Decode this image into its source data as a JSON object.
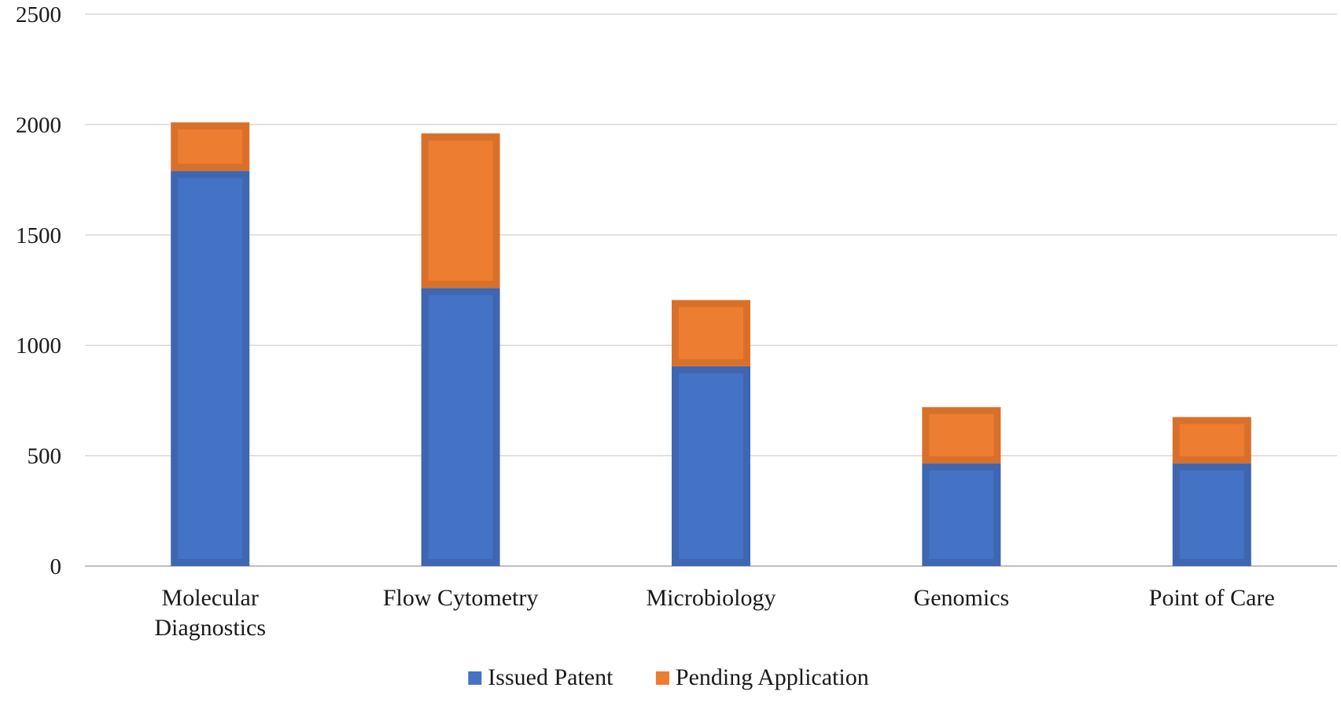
{
  "chart_data": {
    "type": "bar",
    "stacked": true,
    "title": "",
    "xlabel": "",
    "ylabel": "",
    "categories": [
      [
        "Molecular",
        "Diagnostics"
      ],
      [
        "Flow Cytometry"
      ],
      [
        "Microbiology"
      ],
      [
        "Genomics"
      ],
      [
        "Point of Care"
      ]
    ],
    "series": [
      {
        "name": "Issued Patent",
        "color": "#4472C4",
        "values": [
          1790,
          1260,
          905,
          465,
          465
        ]
      },
      {
        "name": "Pending Application",
        "color": "#ED7D31",
        "values": [
          220,
          700,
          300,
          255,
          210
        ]
      }
    ],
    "ylim": [
      0,
      2500
    ],
    "yticks": [
      0,
      500,
      1000,
      1500,
      2000,
      2500
    ],
    "grid": true,
    "legend_position": "bottom-center"
  }
}
